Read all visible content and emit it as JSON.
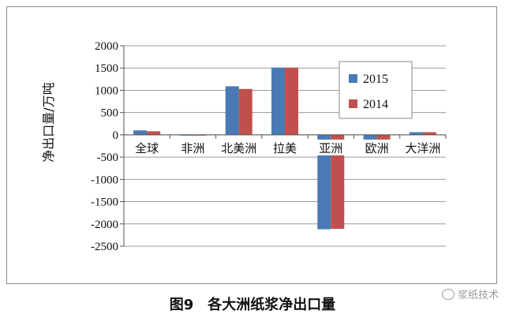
{
  "chart_data": {
    "type": "bar",
    "categories": [
      "全球",
      "非洲",
      "北美洲",
      "拉美",
      "亚洲",
      "欧洲",
      "大洋洲"
    ],
    "series": [
      {
        "name": "2015",
        "color": "#4a7ab5",
        "values": [
          100,
          -10,
          1090,
          1510,
          -2120,
          -300,
          60
        ]
      },
      {
        "name": "2014",
        "color": "#c0504d",
        "values": [
          80,
          -10,
          1030,
          1510,
          -2110,
          -280,
          60
        ]
      }
    ],
    "ylabel": "净出口量/万吨",
    "ylim": [
      -2500,
      2000
    ],
    "yticks": [
      2000,
      1500,
      1000,
      500,
      0,
      -500,
      -1000,
      -1500,
      -2000,
      -2500
    ],
    "grid": true,
    "legend": "right"
  },
  "caption": "图9　各大洲纸浆净出口量",
  "watermark": "浆纸技术"
}
